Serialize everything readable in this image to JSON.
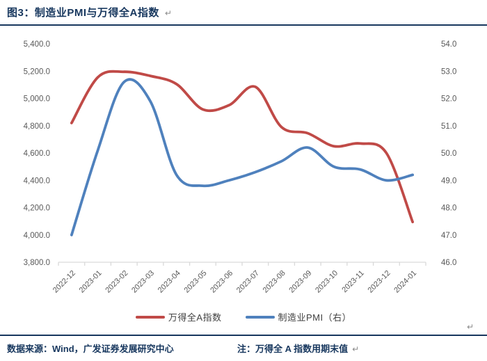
{
  "figure": {
    "title": "图3：制造业PMI与万得全A指数",
    "return_mark": "↵",
    "source": "数据来源：Wind，广发证券发展研究中心",
    "note": "注：万得全 A 指数用期末值"
  },
  "colors": {
    "navy": "#17375E",
    "red_series": "#C04A47",
    "blue_series": "#4F81BD",
    "axis_text": "#595959",
    "axis_line": "#D9D9D9",
    "legend_text": "#404040",
    "return_mark": "#8A8A8A"
  },
  "chart_data": {
    "type": "line",
    "title": "制造业PMI与万得全A指数",
    "grid": false,
    "legend_position": "bottom",
    "categories": [
      "2022-12",
      "2023-01",
      "2023-02",
      "2023-03",
      "2023-04",
      "2023-05",
      "2023-06",
      "2023-07",
      "2023-08",
      "2023-09",
      "2023-10",
      "2023-11",
      "2023-12",
      "2024-01"
    ],
    "left_axis": {
      "label": "万得全A指数",
      "min": 3800,
      "max": 5400,
      "step": 200,
      "tick_labels": [
        "5,400.0",
        "5,200.0",
        "5,000.0",
        "4,800.0",
        "4,600.0",
        "4,400.0",
        "4,200.0",
        "4,000.0",
        "3,800.0"
      ]
    },
    "right_axis": {
      "label": "制造业PMI",
      "min": 46,
      "max": 54,
      "step": 1,
      "tick_labels": [
        "54.0",
        "53.0",
        "52.0",
        "51.0",
        "50.0",
        "49.0",
        "48.0",
        "47.0",
        "46.0"
      ]
    },
    "series": [
      {
        "name": "万得全A指数",
        "axis": "left",
        "color": "#C04A47",
        "values": [
          4820,
          5155,
          5195,
          5165,
          5105,
          4920,
          4950,
          5085,
          4790,
          4745,
          4650,
          4670,
          4600,
          4095
        ]
      },
      {
        "name": "制造业PMI（右）",
        "axis": "right",
        "color": "#4F81BD",
        "values": [
          47.0,
          50.1,
          52.6,
          51.9,
          49.2,
          48.8,
          49.0,
          49.3,
          49.7,
          50.2,
          49.5,
          49.4,
          49.0,
          49.2
        ]
      }
    ]
  }
}
